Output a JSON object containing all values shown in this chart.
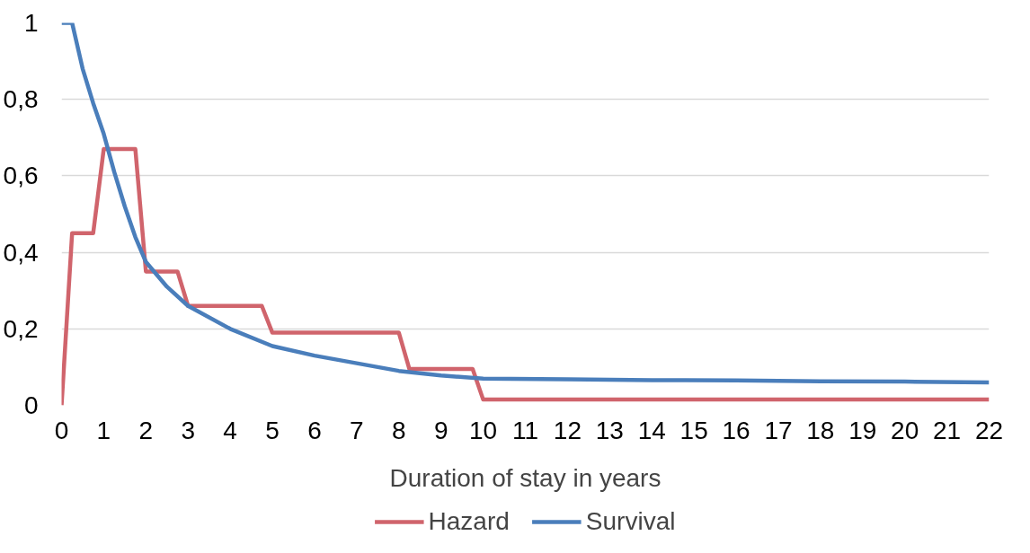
{
  "chart_data": {
    "type": "line",
    "xlabel": "Duration of stay in years",
    "xlim": [
      0,
      22
    ],
    "xticks": [
      0,
      1,
      2,
      3,
      4,
      5,
      6,
      7,
      8,
      9,
      10,
      11,
      12,
      13,
      14,
      15,
      16,
      17,
      18,
      19,
      20,
      21,
      22
    ],
    "ylim": [
      0,
      1
    ],
    "yticks": [
      0,
      {
        "value": 0.2,
        "label": "0,2"
      },
      {
        "value": 0.4,
        "label": "0,4"
      },
      {
        "value": 0.6,
        "label": "0,6"
      },
      {
        "value": 0.8,
        "label": "0,8"
      },
      1
    ],
    "grid": "y",
    "legend": "bottom",
    "line_style": "solid",
    "marker": "none",
    "series": [
      {
        "name": "Hazard",
        "color": "#d0646c",
        "x": [
          0,
          0.25,
          0.75,
          1,
          1.75,
          2,
          2.75,
          3,
          4.75,
          5,
          8,
          8.25,
          9.75,
          10,
          22
        ],
        "values": [
          0,
          0.45,
          0.45,
          0.67,
          0.67,
          0.35,
          0.35,
          0.26,
          0.26,
          0.19,
          0.19,
          0.095,
          0.095,
          0.015,
          0.015
        ]
      },
      {
        "name": "Survival",
        "color": "#4a7ebb",
        "x": [
          0,
          0.25,
          0.5,
          0.75,
          1,
          1.25,
          1.5,
          1.75,
          2,
          2.5,
          3,
          4,
          5,
          6,
          7,
          8,
          9,
          10,
          12,
          14,
          16,
          18,
          20,
          22
        ],
        "values": [
          1,
          1,
          0.88,
          0.79,
          0.71,
          0.61,
          0.52,
          0.44,
          0.375,
          0.31,
          0.26,
          0.2,
          0.155,
          0.13,
          0.11,
          0.09,
          0.078,
          0.07,
          0.068,
          0.066,
          0.065,
          0.063,
          0.062,
          0.06
        ]
      }
    ]
  }
}
